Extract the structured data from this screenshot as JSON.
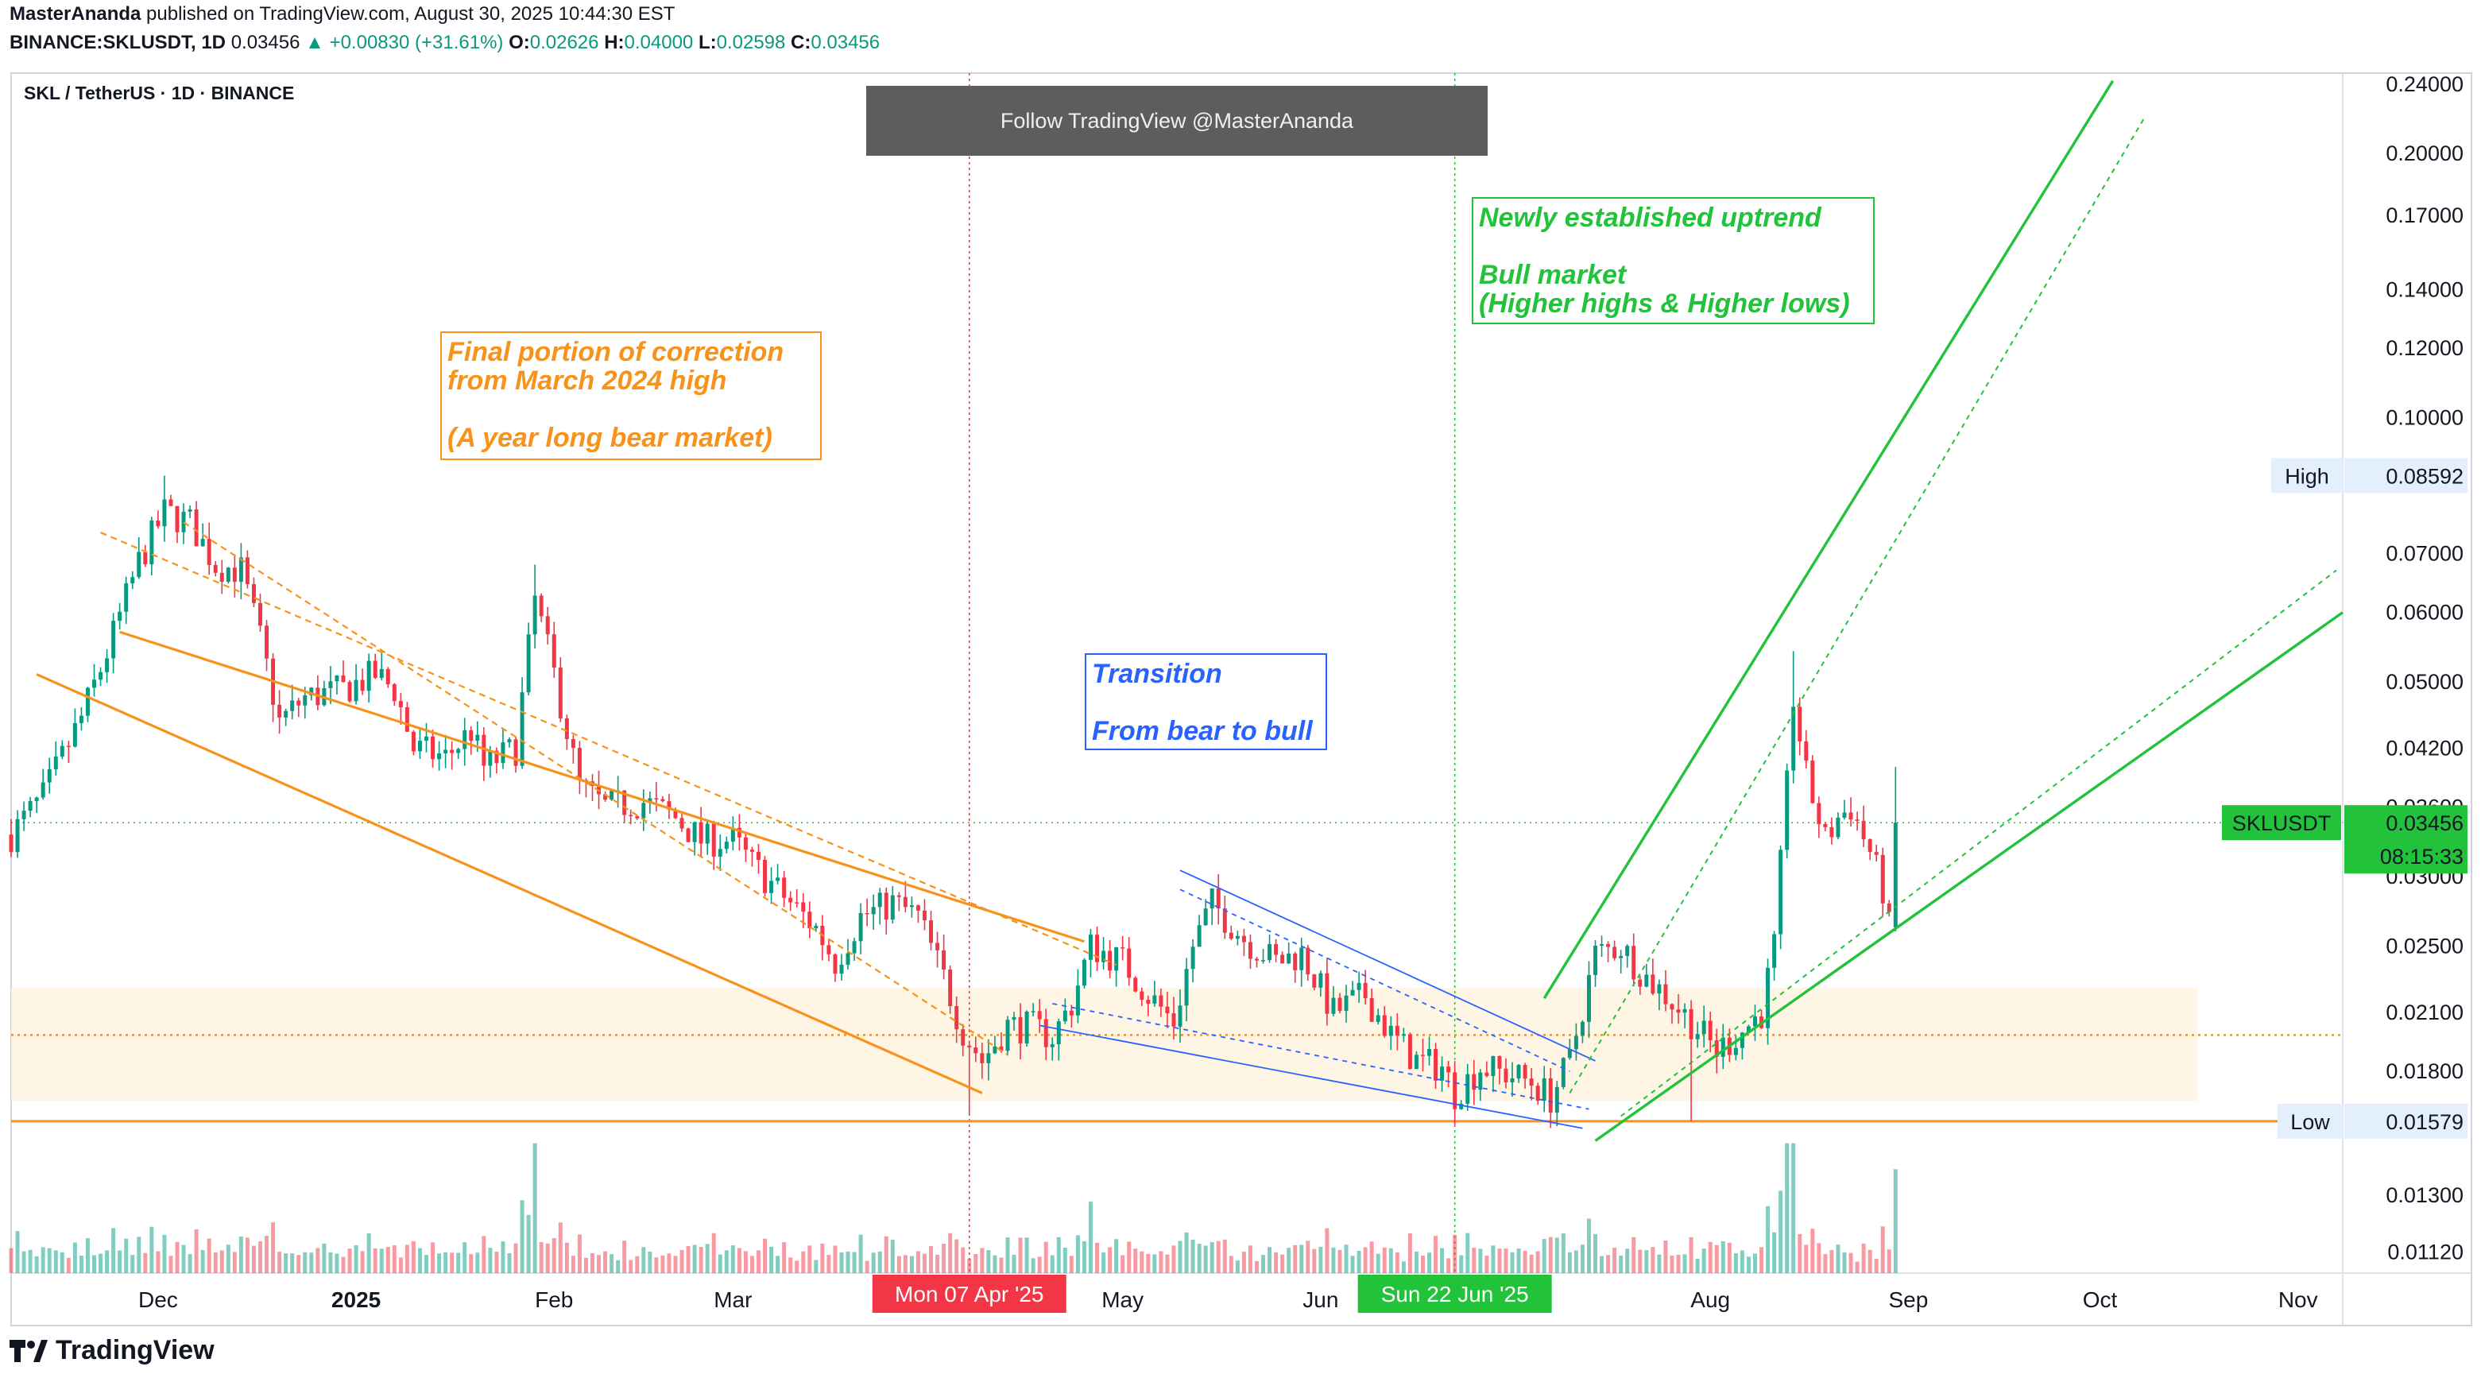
{
  "header": {
    "author": "MasterAnanda",
    "published": "published on TradingView.com, August 30, 2025 10:44:30 EST",
    "symbol_line": "BINANCE:SKLUSDT, 1D",
    "last": "0.03456",
    "change": "+0.00830 (+31.61%)",
    "open_label": "O:",
    "open": "0.02626",
    "high_label": "H:",
    "high": "0.04000",
    "low_label": "L:",
    "low": "0.02598",
    "close_label": "C:",
    "close": "0.03456",
    "pair_title": "SKL / TetherUS · 1D · BINANCE"
  },
  "banner": {
    "text": "Follow TradingView @MasterAnanda"
  },
  "brand": {
    "name": "TradingView"
  },
  "colors": {
    "up": "#089981",
    "down": "#f23645",
    "orange": "#f7931a",
    "green_trend": "#22c23b",
    "blue_trend": "#2962ff",
    "support_zone": "#fff3e0"
  },
  "chart_data": {
    "type": "candlestick",
    "scale": "log",
    "ylim": [
      0.0106,
      0.247
    ],
    "y_ticks": [
      "0.24000",
      "0.20000",
      "0.17000",
      "0.14000",
      "0.12000",
      "0.10000",
      "0.07000",
      "0.06000",
      "0.05000",
      "0.04200",
      "0.03600",
      "0.03000",
      "0.02500",
      "0.02100",
      "0.01800",
      "0.01300",
      "0.01120"
    ],
    "x_ticks": [
      "Dec",
      "2025",
      "Feb",
      "Mar",
      "May",
      "Jun",
      "Aug",
      "Sep",
      "Oct",
      "Nov"
    ],
    "x_tick_dates": [
      "2024-12-01",
      "2025-01-01",
      "2025-02-01",
      "2025-03-01",
      "2025-05-01",
      "2025-06-01",
      "2025-08-01",
      "2025-09-01",
      "2025-10-01",
      "2025-11-01"
    ],
    "date_range": [
      "2024-11-08",
      "2025-11-08"
    ],
    "highlight_dates": [
      {
        "label": "Mon 07 Apr '25",
        "date": "2025-04-07",
        "color": "#f23645"
      },
      {
        "label": "Sun 22 Jun '25",
        "date": "2025-06-22",
        "color": "#22c23b"
      }
    ],
    "price_labels": [
      {
        "label": "High",
        "value": "0.08592"
      },
      {
        "label": "Low",
        "value": "0.01579"
      },
      {
        "label": "SKLUSDT",
        "value": "0.03456",
        "countdown": "08:15:33"
      }
    ],
    "support_zone": [
      0.01665,
      0.0224
    ],
    "support_line": 0.01579,
    "resistance_line": 0.0198,
    "annotations": [
      {
        "lines": [
          "Final portion of correction",
          "from March 2024 high",
          "",
          "(A year long bear market)"
        ],
        "color": "#f7931a"
      },
      {
        "lines": [
          "Transition",
          "",
          "From bear to bull"
        ],
        "color": "#2962ff"
      },
      {
        "lines": [
          "Newly established uptrend",
          "",
          "Bull market",
          "(Higher highs & Higher lows)"
        ],
        "color": "#22c23b"
      }
    ],
    "candle_anchors": [
      [
        "2024-11-08",
        0.0335
      ],
      [
        "2024-11-13",
        0.037
      ],
      [
        "2024-11-19",
        0.0455
      ],
      [
        "2024-11-23",
        0.054
      ],
      [
        "2024-11-28",
        0.0685
      ],
      [
        "2024-12-02",
        0.078
      ],
      [
        "2024-12-06",
        0.076
      ],
      [
        "2024-12-10",
        0.068
      ],
      [
        "2024-12-14",
        0.067
      ],
      [
        "2024-12-17",
        0.056
      ],
      [
        "2024-12-20",
        0.045
      ],
      [
        "2024-12-24",
        0.048
      ],
      [
        "2024-12-30",
        0.049
      ],
      [
        "2025-01-04",
        0.051
      ],
      [
        "2025-01-07",
        0.049
      ],
      [
        "2025-01-10",
        0.042
      ],
      [
        "2025-01-15",
        0.041
      ],
      [
        "2025-01-19",
        0.044
      ],
      [
        "2025-01-21",
        0.04
      ],
      [
        "2025-01-26",
        0.042
      ],
      [
        "2025-01-29",
        0.062
      ],
      [
        "2025-02-01",
        0.051
      ],
      [
        "2025-02-05",
        0.038
      ],
      [
        "2025-02-09",
        0.036
      ],
      [
        "2025-02-15",
        0.0365
      ],
      [
        "2025-02-20",
        0.035
      ],
      [
        "2025-02-24",
        0.033
      ],
      [
        "2025-03-01",
        0.033
      ],
      [
        "2025-03-04",
        0.031
      ],
      [
        "2025-03-10",
        0.028
      ],
      [
        "2025-03-14",
        0.0262
      ],
      [
        "2025-03-17",
        0.024
      ],
      [
        "2025-03-21",
        0.027
      ],
      [
        "2025-03-26",
        0.028
      ],
      [
        "2025-03-30",
        0.027
      ],
      [
        "2025-04-03",
        0.023
      ],
      [
        "2025-04-06",
        0.02
      ],
      [
        "2025-04-09",
        0.0185
      ],
      [
        "2025-04-13",
        0.0203
      ],
      [
        "2025-04-17",
        0.0202
      ],
      [
        "2025-04-20",
        0.0197
      ],
      [
        "2025-04-23",
        0.0215
      ],
      [
        "2025-04-26",
        0.025
      ],
      [
        "2025-05-01",
        0.024
      ],
      [
        "2025-05-05",
        0.022
      ],
      [
        "2025-05-09",
        0.0205
      ],
      [
        "2025-05-12",
        0.025
      ],
      [
        "2025-05-15",
        0.028
      ],
      [
        "2025-05-20",
        0.0255
      ],
      [
        "2025-05-25",
        0.024
      ],
      [
        "2025-05-29",
        0.0245
      ],
      [
        "2025-06-03",
        0.021
      ],
      [
        "2025-06-08",
        0.022
      ],
      [
        "2025-06-12",
        0.0198
      ],
      [
        "2025-06-16",
        0.0185
      ],
      [
        "2025-06-20",
        0.0182
      ],
      [
        "2025-06-22",
        0.017
      ],
      [
        "2025-06-26",
        0.0182
      ],
      [
        "2025-07-01",
        0.0178
      ],
      [
        "2025-07-04",
        0.0175
      ],
      [
        "2025-07-07",
        0.0168
      ],
      [
        "2025-07-10",
        0.0185
      ],
      [
        "2025-07-14",
        0.0245
      ],
      [
        "2025-07-18",
        0.025
      ],
      [
        "2025-07-22",
        0.023
      ],
      [
        "2025-07-25",
        0.022
      ],
      [
        "2025-07-29",
        0.0205
      ],
      [
        "2025-08-02",
        0.019
      ],
      [
        "2025-08-06",
        0.02
      ],
      [
        "2025-08-09",
        0.021
      ],
      [
        "2025-08-11",
        0.025
      ],
      [
        "2025-08-13",
        0.038
      ],
      [
        "2025-08-14",
        0.048
      ],
      [
        "2025-08-16",
        0.039
      ],
      [
        "2025-08-19",
        0.033
      ],
      [
        "2025-08-21",
        0.035
      ],
      [
        "2025-08-23",
        0.036
      ],
      [
        "2025-08-26",
        0.032
      ],
      [
        "2025-08-28",
        0.029
      ],
      [
        "2025-08-29",
        0.0262
      ],
      [
        "2025-08-30",
        0.0345
      ]
    ],
    "volume_max": 1.0
  }
}
